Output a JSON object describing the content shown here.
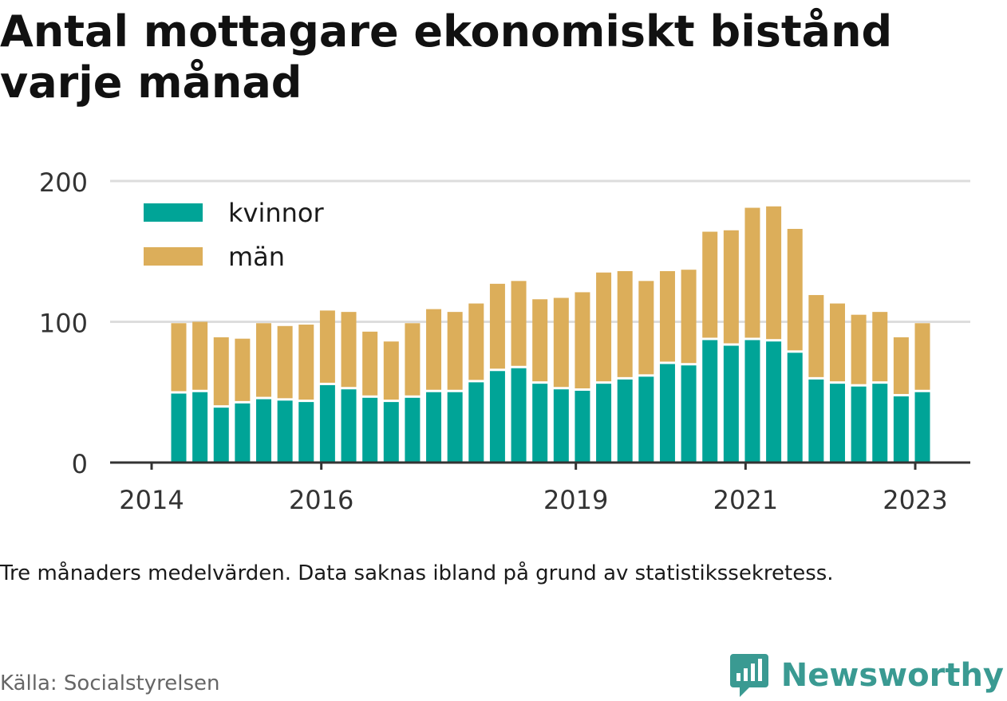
{
  "title": "Antal mottagare ekonomiskt bistånd varje månad",
  "note": "Tre månaders medelvärden. Data saknas ibland på grund av statistikssekretess.",
  "source": "Källa: Socialstyrelsen",
  "brand": "Newsworthy",
  "colors": {
    "kvinnor": "#00a497",
    "man": "#dcae5a",
    "grid": "#dddddd",
    "axis": "#333333"
  },
  "chart_data": {
    "type": "bar",
    "stacked": true,
    "title": "Antal mottagare ekonomiskt bistånd varje månad",
    "xlabel": "",
    "ylabel": "",
    "ylim": [
      0,
      200
    ],
    "yticks": [
      0,
      100,
      200
    ],
    "xticks": [
      "2014",
      "2016",
      "2019",
      "2021",
      "2023"
    ],
    "legend_position": "top-left",
    "grid": true,
    "series": [
      {
        "name": "kvinnor",
        "values": [
          49,
          50,
          39,
          42,
          45,
          44,
          43,
          55,
          52,
          46,
          43,
          46,
          50,
          50,
          57,
          65,
          67,
          56,
          52,
          51,
          56,
          59,
          61,
          70,
          69,
          87,
          83,
          87,
          86,
          78,
          59,
          56,
          54,
          56,
          47,
          50
        ]
      },
      {
        "name": "män",
        "values": [
          50,
          50,
          50,
          46,
          54,
          53,
          55,
          53,
          55,
          47,
          43,
          53,
          59,
          57,
          56,
          62,
          62,
          60,
          65,
          70,
          79,
          77,
          68,
          66,
          68,
          77,
          82,
          94,
          96,
          88,
          60,
          57,
          51,
          51,
          42,
          49
        ]
      }
    ]
  }
}
